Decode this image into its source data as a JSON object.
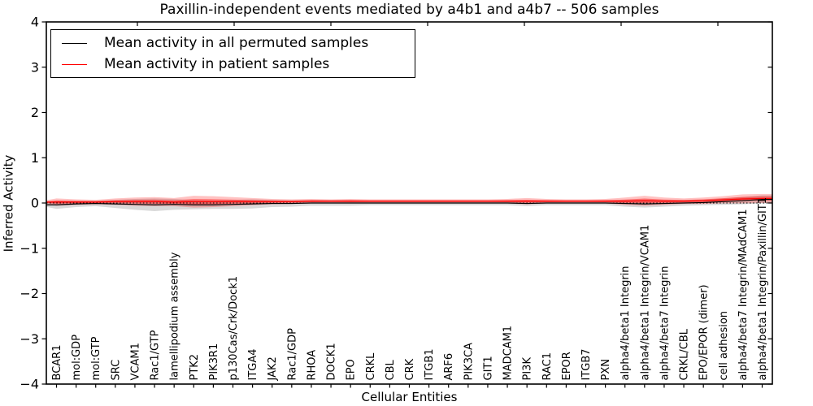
{
  "figure": {
    "title": "Paxillin-independent events mediated by a4b1 and a4b7 -- 506 samples",
    "xlabel": "Cellular Entities",
    "ylabel": "Inferred Activity"
  },
  "legend": {
    "items": [
      {
        "label": "Mean activity in all permuted samples",
        "color": "#000000"
      },
      {
        "label": "Mean activity in patient samples",
        "color": "#ff0000"
      }
    ]
  },
  "chart_data": {
    "type": "line",
    "title": "Paxillin-independent events mediated by a4b1 and a4b7 -- 506 samples",
    "xlabel": "Cellular Entities",
    "ylabel": "Inferred Activity",
    "ylim": [
      -4,
      4
    ],
    "yticks": [
      4,
      3,
      2,
      1,
      0,
      -1,
      -2,
      -3,
      -4
    ],
    "grid": false,
    "zero_reference_line": true,
    "legend_position": "upper left",
    "categories": [
      "BCAR1",
      "mol:GDP",
      "mol:GTP",
      "SRC",
      "VCAM1",
      "Rac1/GTP",
      "lamellipodium assembly",
      "PTK2",
      "PIK3R1",
      "p130Cas/Crk/Dock1",
      "ITGA4",
      "JAK2",
      "Rac1/GDP",
      "RHOA",
      "DOCK1",
      "EPO",
      "CRKL",
      "CBL",
      "CRK",
      "ITGB1",
      "ARF6",
      "PIK3CA",
      "GIT1",
      "MADCAM1",
      "PI3K",
      "RAC1",
      "EPOR",
      "ITGB7",
      "PXN",
      "alpha4/beta1 Integrin",
      "alpha4/beta1 Integrin/VCAM1",
      "alpha4/beta7 Integrin",
      "CRKL/CBL",
      "EPO/EPOR (dimer)",
      "cell adhesion",
      "alpha4/beta7 Integrin/MAdCAM1",
      "alpha4/beta1 Integrin/Paxillin/GIT1"
    ],
    "series": [
      {
        "name": "Mean activity in all permuted samples",
        "color": "#000000",
        "values": [
          -0.04,
          -0.02,
          -0.01,
          -0.02,
          -0.03,
          -0.04,
          -0.03,
          -0.04,
          -0.04,
          -0.03,
          -0.02,
          -0.01,
          -0.01,
          0,
          0,
          0,
          0,
          0,
          0,
          0,
          0,
          0,
          0,
          0,
          -0.01,
          0,
          0,
          0,
          0,
          -0.01,
          -0.02,
          -0.01,
          0,
          0.01,
          0.03,
          0.05,
          0.08
        ],
        "band_halfwidth": [
          0.09,
          0.07,
          0.06,
          0.09,
          0.12,
          0.14,
          0.12,
          0.1,
          0.09,
          0.1,
          0.1,
          0.08,
          0.07,
          0.06,
          0.06,
          0.06,
          0.05,
          0.05,
          0.05,
          0.05,
          0.05,
          0.05,
          0.05,
          0.05,
          0.06,
          0.05,
          0.05,
          0.05,
          0.05,
          0.07,
          0.08,
          0.07,
          0.06,
          0.06,
          0.07,
          0.08,
          0.09
        ],
        "band_color": "rgba(0,0,0,0.15)"
      },
      {
        "name": "Mean activity in patient samples",
        "color": "#ff0000",
        "values": [
          0.02,
          0.02,
          0.02,
          0.03,
          0.03,
          0.03,
          0.02,
          0.03,
          0.03,
          0.03,
          0.03,
          0.03,
          0.03,
          0.04,
          0.04,
          0.04,
          0.04,
          0.04,
          0.04,
          0.04,
          0.04,
          0.04,
          0.04,
          0.04,
          0.04,
          0.04,
          0.04,
          0.04,
          0.04,
          0.04,
          0.05,
          0.04,
          0.04,
          0.05,
          0.07,
          0.09,
          0.1
        ],
        "band_halfwidth": [
          0.08,
          0.06,
          0.05,
          0.07,
          0.09,
          0.1,
          0.09,
          0.13,
          0.12,
          0.1,
          0.08,
          0.06,
          0.05,
          0.05,
          0.04,
          0.05,
          0.04,
          0.04,
          0.04,
          0.04,
          0.04,
          0.04,
          0.04,
          0.05,
          0.07,
          0.05,
          0.04,
          0.04,
          0.05,
          0.08,
          0.11,
          0.08,
          0.06,
          0.07,
          0.08,
          0.1,
          0.1
        ],
        "band_color": "rgba(255,0,0,0.24)",
        "band_inner_color": "rgba(255,0,0,0.42)"
      }
    ],
    "style": {
      "axis_color": "#000000",
      "zero_line_style": "dotted"
    }
  }
}
